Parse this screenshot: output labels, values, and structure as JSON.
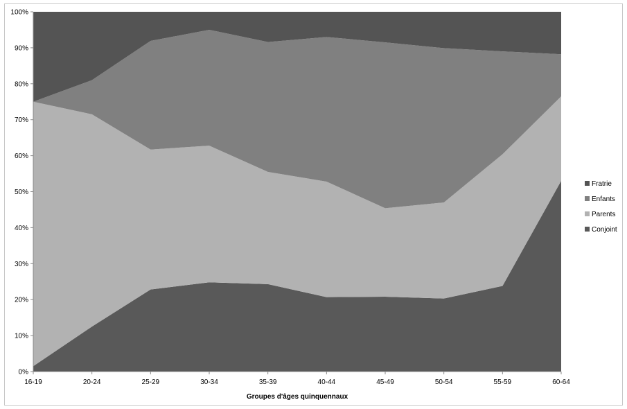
{
  "chart_data": {
    "type": "area",
    "stacked": true,
    "percent": true,
    "categories": [
      "16-19",
      "20-24",
      "25-29",
      "30-34",
      "35-39",
      "40-44",
      "45-49",
      "50-54",
      "55-59",
      "60-64"
    ],
    "series": [
      {
        "name": "Conjoint",
        "color": "#595959",
        "values": [
          1.5,
          12.5,
          22.8,
          24.8,
          24.3,
          20.7,
          20.8,
          20.3,
          23.8,
          53.0
        ]
      },
      {
        "name": "Parents",
        "color": "#b2b2b2",
        "values": [
          73.5,
          59.0,
          38.9,
          38.0,
          31.2,
          32.1,
          24.6,
          26.7,
          36.6,
          23.5
        ]
      },
      {
        "name": "Enfants",
        "color": "#808080",
        "values": [
          0.0,
          9.5,
          30.2,
          32.2,
          36.1,
          40.2,
          46.1,
          42.9,
          28.6,
          11.7
        ]
      },
      {
        "name": "Fratrie",
        "color": "#545454",
        "values": [
          25.0,
          19.0,
          8.1,
          5.0,
          8.4,
          7.0,
          8.5,
          10.1,
          11.0,
          11.8
        ]
      }
    ],
    "legend_order": [
      "Fratrie",
      "Enfants",
      "Parents",
      "Conjoint"
    ],
    "xlabel": "Groupes d'âges quinquennaux",
    "ylabel": "",
    "ylim": [
      0,
      100
    ],
    "yticks": [
      "0%",
      "10%",
      "20%",
      "30%",
      "40%",
      "50%",
      "60%",
      "70%",
      "80%",
      "90%",
      "100%"
    ],
    "legend_position": "right",
    "grid": false
  }
}
